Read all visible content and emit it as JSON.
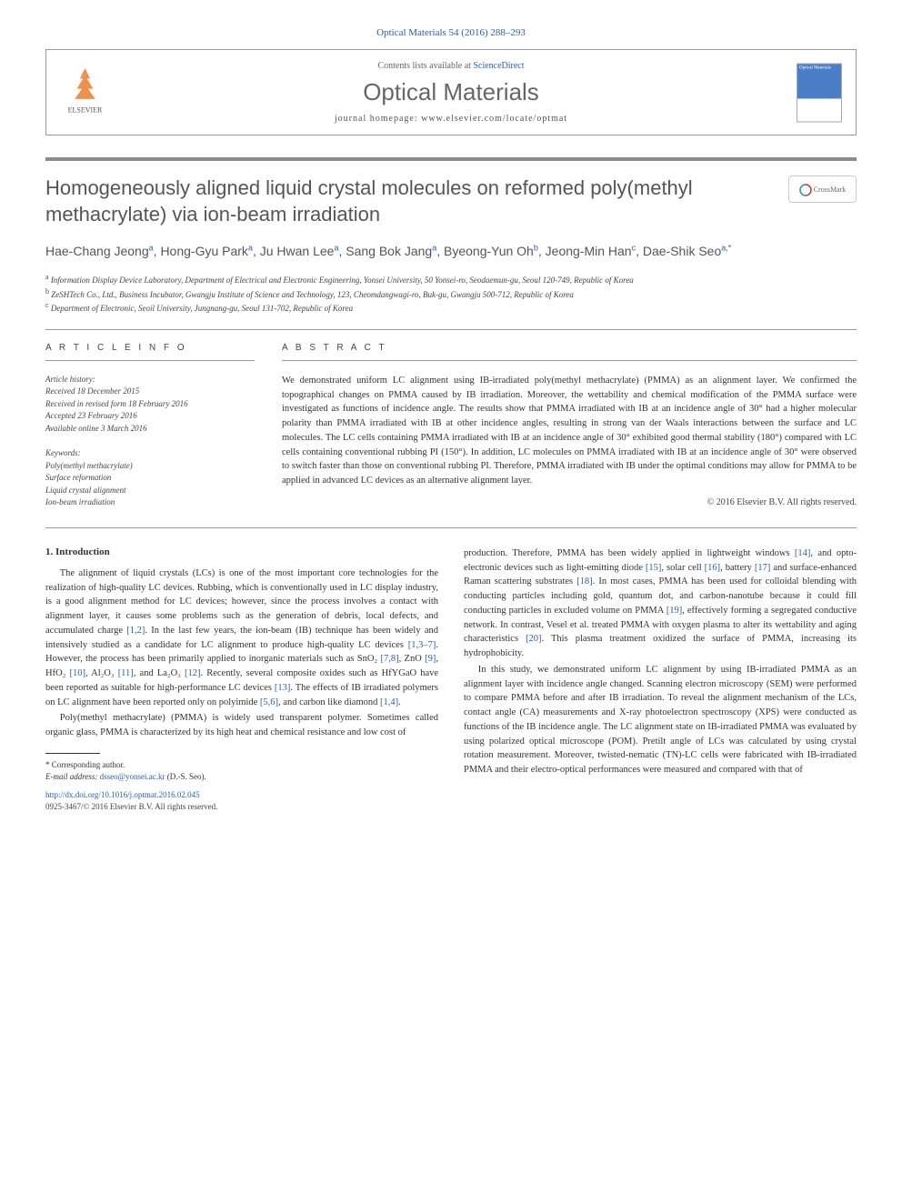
{
  "journal_ref": "Optical Materials 54 (2016) 288–293",
  "header": {
    "contents_prefix": "Contents lists available at ",
    "contents_link": "ScienceDirect",
    "journal_title": "Optical Materials",
    "homepage_prefix": "journal homepage: ",
    "homepage_url": "www.elsevier.com/locate/optmat",
    "elsevier": "ELSEVIER",
    "cover_text": "Optical Materials"
  },
  "crossmark": "CrossMark",
  "title": "Homogeneously aligned liquid crystal molecules on reformed poly(methyl methacrylate) via ion-beam irradiation",
  "authors": [
    {
      "name": "Hae-Chang Jeong",
      "marks": "a"
    },
    {
      "name": "Hong-Gyu Park",
      "marks": "a"
    },
    {
      "name": "Ju Hwan Lee",
      "marks": "a"
    },
    {
      "name": "Sang Bok Jang",
      "marks": "a"
    },
    {
      "name": "Byeong-Yun Oh",
      "marks": "b"
    },
    {
      "name": "Jeong-Min Han",
      "marks": "c"
    },
    {
      "name": "Dae-Shik Seo",
      "marks": "a,*"
    }
  ],
  "affiliations": [
    {
      "mark": "a",
      "text": "Information Display Device Laboratory, Department of Electrical and Electronic Engineering, Yonsei University, 50 Yonsei-ro, Seodaemun-gu, Seoul 120-749, Republic of Korea"
    },
    {
      "mark": "b",
      "text": "ZeSHTech Co., Ltd., Business Incubator, Gwangju Institute of Science and Technology, 123, Cheomdangwagi-ro, Buk-gu, Gwangju 500-712, Republic of Korea"
    },
    {
      "mark": "c",
      "text": "Department of Electronic, Seoil University, Jungnang-gu, Seoul 131-702, Republic of Korea"
    }
  ],
  "info": {
    "article_info_heading": "A R T I C L E   I N F O",
    "abstract_heading": "A B S T R A C T",
    "history_label": "Article history:",
    "history": [
      "Received 18 December 2015",
      "Received in revised form 18 February 2016",
      "Accepted 23 February 2016",
      "Available online 3 March 2016"
    ],
    "keywords_label": "Keywords:",
    "keywords": [
      "Poly(methyl methacrylate)",
      "Surface reformation",
      "Liquid crystal alignment",
      "Ion-beam irradiation"
    ]
  },
  "abstract": "We demonstrated uniform LC alignment using IB-irradiated poly(methyl methacrylate) (PMMA) as an alignment layer. We confirmed the topographical changes on PMMA caused by IB irradiation. Moreover, the wettability and chemical modification of the PMMA surface were investigated as functions of incidence angle. The results show that PMMA irradiated with IB at an incidence angle of 30° had a higher molecular polarity than PMMA irradiated with IB at other incidence angles, resulting in strong van der Waals interactions between the surface and LC molecules. The LC cells containing PMMA irradiated with IB at an incidence angle of 30° exhibited good thermal stability (180°) compared with LC cells containing conventional rubbing PI (150°). In addition, LC molecules on PMMA irradiated with IB at an incidence angle of 30° were observed to switch faster than those on conventional rubbing PI. Therefore, PMMA irradiated with IB under the optimal conditions may allow for PMMA to be applied in advanced LC devices as an alternative alignment layer.",
  "copyright": "© 2016 Elsevier B.V. All rights reserved.",
  "section_heading": "1. Introduction",
  "body_left": {
    "p1_pre": "The alignment of liquid crystals (LCs) is one of the most important core technologies for the realization of high-quality LC devices. Rubbing, which is conventionally used in LC display industry, is a good alignment method for LC devices; however, since the process involves a contact with alignment layer, it causes some problems such as the generation of debris, local defects, and accumulated charge ",
    "r1": "[1,2]",
    "p1_mid1": ". In the last few years, the ion-beam (IB) technique has been widely and intensively studied as a candidate for LC alignment to produce high-quality LC devices ",
    "r2": "[1,3–7]",
    "p1_mid2": ". However, the process has been primarily applied to inorganic materials such as SnO₂ ",
    "r3": "[7,8]",
    "p1_mid3": ", ZnO ",
    "r4": "[9]",
    "p1_mid4": ", HfO₂ ",
    "r5": "[10]",
    "p1_mid5": ", Al₂O₃ ",
    "r6": "[11]",
    "p1_mid6": ", and La₂O₃ ",
    "r7": "[12]",
    "p1_mid7": ". Recently, several composite oxides such as HfYGaO have been reported as suitable for high-performance LC devices ",
    "r8": "[13]",
    "p1_mid8": ". The effects of IB irradiated polymers on LC alignment have been reported only on polyimide ",
    "r9": "[5,6]",
    "p1_mid9": ", and carbon like diamond ",
    "r10": "[1,4]",
    "p1_end": ".",
    "p2": "Poly(methyl methacrylate) (PMMA) is widely used transparent polymer. Sometimes called organic glass, PMMA is characterized by its high heat and chemical resistance and low cost of"
  },
  "body_right": {
    "p1_pre": "production. Therefore, PMMA has been widely applied in lightweight windows ",
    "r1": "[14]",
    "p1_mid1": ", and opto-electronic devices such as light-emitting diode ",
    "r2": "[15]",
    "p1_mid2": ", solar cell ",
    "r3": "[16]",
    "p1_mid3": ", battery ",
    "r4": "[17]",
    "p1_mid4": " and surface-enhanced Raman scattering substrates ",
    "r5": "[18]",
    "p1_mid5": ". In most cases, PMMA has been used for colloidal blending with conducting particles including gold, quantum dot, and carbon-nanotube because it could fill conducting particles in excluded volume on PMMA ",
    "r6": "[19]",
    "p1_mid6": ", effectively forming a segregated conductive network. In contrast, Vesel et al. treated PMMA with oxygen plasma to alter its wettability and aging characteristics ",
    "r7": "[20]",
    "p1_end": ". This plasma treatment oxidized the surface of PMMA, increasing its hydrophobicity.",
    "p2": "In this study, we demonstrated uniform LC alignment by using IB-irradiated PMMA as an alignment layer with incidence angle changed. Scanning electron microscopy (SEM) were performed to compare PMMA before and after IB irradiation. To reveal the alignment mechanism of the LCs, contact angle (CA) measurements and X-ray photoelectron spectroscopy (XPS) were conducted as functions of the IB incidence angle. The LC alignment state on IB-irradiated PMMA was evaluated by using polarized optical microscope (POM). Pretilt angle of LCs was calculated by using crystal rotation measurement. Moreover, twisted-nematic (TN)-LC cells were fabricated with IB-irradiated PMMA and their electro-optical performances were measured and compared with that of"
  },
  "footnote": {
    "corr_label": "* Corresponding author.",
    "email_label": "E-mail address: ",
    "email": "dsseo@yonsei.ac.kr",
    "email_whom": " (D.-S. Seo)."
  },
  "footer": {
    "doi": "http://dx.doi.org/10.1016/j.optmat.2016.02.045",
    "issn": "0925-3467/© 2016 Elsevier B.V. All rights reserved."
  }
}
